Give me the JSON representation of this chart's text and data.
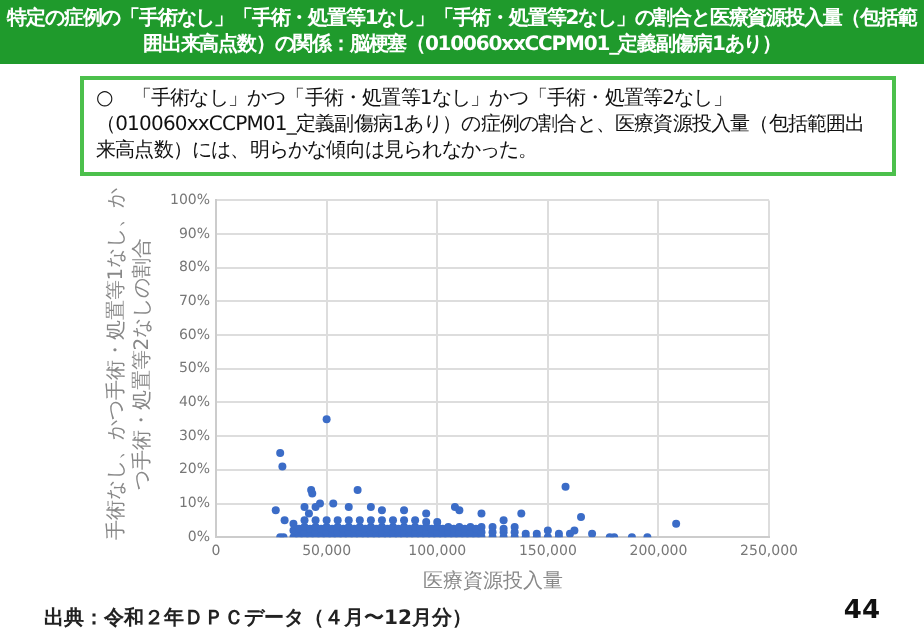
{
  "chart_data": {
    "type": "scatter",
    "title": "特定の症例の「手術なし」「手術・処置等1なし」「手術・処置等2なし」の割合と医療資源投入量（包括範囲出来高点数）の関係：脳梗塞（010060xxCCPM01_定義副傷病1あり）",
    "subtitle": "○　「手術なし」かつ「手術・処置等1なし」かつ「手術・処置等2なし」（010060xxCCPM01_定義副傷病1あり）の症例の割合と、医療資源投入量（包括範囲出来高点数）には、明らかな傾向は見られなかった。",
    "xlabel": "医療資源投入量",
    "ylabel": "手術なし、かつ手術・処置等1なし、かつ手術・処置等2なしの割合",
    "annotations": [
      "出典：令和２年ＤＰＣデータ（４月〜12月分）",
      "44"
    ],
    "x": [
      35000,
      35000,
      35000,
      37500,
      37500,
      40000,
      40000,
      40000,
      40000,
      42500,
      42500,
      45000,
      45000,
      45000,
      45000,
      47500,
      47500,
      50000,
      50000,
      50000,
      50000,
      52500,
      52500,
      55000,
      55000,
      55000,
      55000,
      57500,
      57500,
      60000,
      60000,
      60000,
      60000,
      62500,
      62500,
      65000,
      65000,
      65000,
      65000,
      67500,
      67500,
      70000,
      70000,
      70000,
      70000,
      72500,
      72500,
      75000,
      75000,
      75000,
      75000,
      77500,
      77500,
      80000,
      80000,
      80000,
      80000,
      82500,
      82500,
      85000,
      85000,
      85000,
      85000,
      87500,
      87500,
      90000,
      90000,
      90000,
      90000,
      92500,
      92500,
      95000,
      95000,
      95000,
      95000,
      97500,
      97500,
      100000,
      100000,
      100000,
      100000,
      102500,
      102500,
      105000,
      105000,
      105000,
      107500,
      107500,
      110000,
      110000,
      110000,
      112500,
      112500,
      115000,
      115000,
      115000,
      117500,
      117500,
      120000,
      120000,
      120000,
      125000,
      125000,
      125000,
      130000,
      130000,
      130000,
      135000,
      135000,
      135000,
      140000,
      140000,
      145000,
      145000,
      150000,
      150000,
      155000,
      155000,
      27000,
      29000,
      29000,
      30000,
      31000,
      30500,
      50000,
      43000,
      43500,
      47000,
      53000,
      64000,
      158000,
      208000,
      195000,
      188000,
      180000,
      178000,
      170000,
      165000,
      162000,
      160000,
      138000,
      110000,
      108000,
      120000,
      40000,
      42000,
      45000,
      60000,
      70000,
      75000,
      85000,
      95000,
      130000
    ],
    "values": [
      0,
      2,
      4,
      0.5,
      2.5,
      0,
      1.5,
      3,
      5,
      0.5,
      2.5,
      0,
      1.5,
      3,
      5,
      0.5,
      2.5,
      0,
      1.5,
      3,
      5,
      0.5,
      2.5,
      0,
      1.5,
      3,
      5,
      0.5,
      2.5,
      0,
      1.5,
      3,
      5,
      0.5,
      2.5,
      0,
      1.5,
      3,
      5,
      0.5,
      2.5,
      0,
      1.5,
      3,
      5,
      0.5,
      2.5,
      0,
      1.5,
      3,
      5,
      0.5,
      2.5,
      0,
      1.5,
      3,
      5,
      0.5,
      2.5,
      0,
      1.5,
      3,
      5,
      0.5,
      2.5,
      0,
      1.5,
      3,
      5,
      0.5,
      2.5,
      0,
      1.5,
      3,
      4.5,
      0.5,
      2.5,
      0,
      1.5,
      3,
      4.5,
      0.5,
      2.5,
      0,
      1.5,
      3,
      0.5,
      2.5,
      0,
      1.5,
      3,
      0.5,
      2.5,
      0,
      1.5,
      3,
      0.5,
      2.5,
      0,
      1.5,
      3,
      0,
      1.5,
      3,
      0,
      1.5,
      2.5,
      0,
      1.5,
      3,
      0,
      1,
      0,
      1,
      0,
      2,
      0,
      1,
      8,
      0,
      25,
      21,
      5,
      0,
      35,
      14,
      13,
      10,
      10,
      14,
      15,
      4,
      0,
      0,
      0,
      0,
      1,
      6,
      2,
      1,
      7,
      8,
      9,
      7,
      9,
      7,
      9,
      9,
      9,
      8,
      8,
      7,
      5
    ],
    "color": "#3b6cc7",
    "marker": "circle",
    "grid": true,
    "legend": false,
    "xlim": [
      0,
      250000
    ],
    "xticks": [
      0,
      {
        "value": 50000,
        "label": "50,000"
      },
      {
        "value": 100000,
        "label": "100,000"
      },
      {
        "value": 150000,
        "label": "150,000"
      },
      {
        "value": 200000,
        "label": "200,000"
      },
      {
        "value": 250000,
        "label": "250,000"
      }
    ],
    "ylim": [
      0,
      100
    ],
    "yticks": [
      {
        "value": 0,
        "label": "0%"
      },
      {
        "value": 10,
        "label": "10%"
      },
      {
        "value": 20,
        "label": "20%"
      },
      {
        "value": 30,
        "label": "30%"
      },
      {
        "value": 40,
        "label": "40%"
      },
      {
        "value": 50,
        "label": "50%"
      },
      {
        "value": 60,
        "label": "60%"
      },
      {
        "value": 70,
        "label": "70%"
      },
      {
        "value": 80,
        "label": "80%"
      },
      {
        "value": 90,
        "label": "90%"
      },
      {
        "value": 100,
        "label": "100%"
      }
    ]
  }
}
